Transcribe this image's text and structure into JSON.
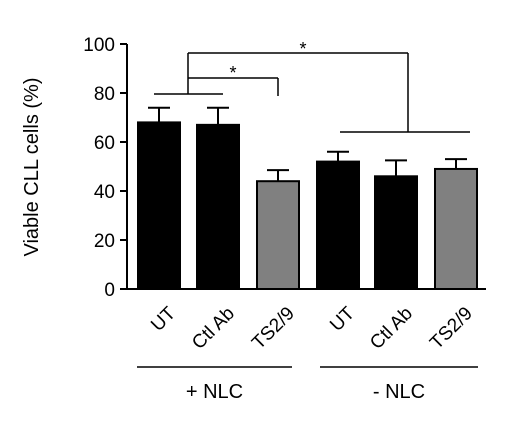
{
  "chart_data": {
    "type": "bar",
    "ylabel": "Viable CLL cells (%)",
    "xlabel": "",
    "ylim": [
      0,
      100
    ],
    "yticks": [
      0,
      20,
      40,
      60,
      80,
      100
    ],
    "categories": [
      "UT",
      "Ctl Ab",
      "TS2/9",
      "UT",
      "Ctl Ab",
      "TS2/9"
    ],
    "values": [
      68,
      67,
      44,
      52,
      46,
      49
    ],
    "errors": [
      6,
      7,
      4.5,
      4,
      6.5,
      4
    ],
    "bar_colors": [
      "#000000",
      "#000000",
      "#808080",
      "#000000",
      "#000000",
      "#808080"
    ],
    "groups": [
      {
        "label": "+ NLC",
        "members": [
          0,
          1,
          2
        ]
      },
      {
        "label": "- NLC",
        "members": [
          3,
          4,
          5
        ]
      }
    ],
    "significance": [
      {
        "label": "*",
        "from": [
          0,
          1
        ],
        "to": [
          2
        ]
      },
      {
        "label": "*",
        "from": [
          0,
          1
        ],
        "to": [
          3,
          4,
          5
        ]
      }
    ]
  }
}
